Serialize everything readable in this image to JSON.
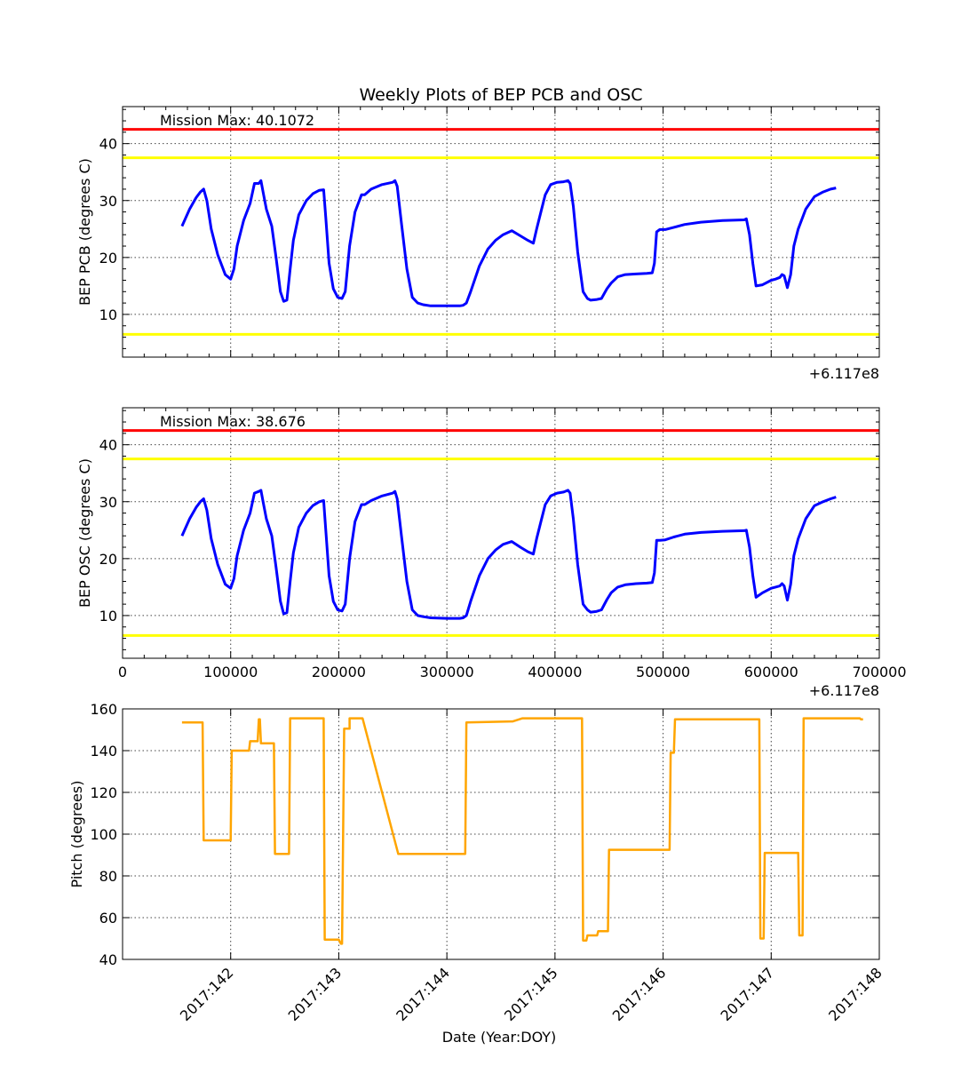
{
  "title": "Weekly Plots of BEP PCB and OSC",
  "chart_data": [
    {
      "type": "line",
      "ylabel": "BEP PCB (degrees C)",
      "offset_label": "+6.117e8",
      "annotation": "Mission Max: 40.1072",
      "xlim": [
        0,
        700000
      ],
      "ylim": [
        2.5,
        46.5
      ],
      "yticks": [
        10,
        20,
        30,
        40
      ],
      "xticks": [
        0,
        100000,
        200000,
        300000,
        400000,
        500000,
        600000,
        700000
      ],
      "grid": true,
      "hlines": [
        {
          "y": 42.5,
          "color": "#ff0000"
        },
        {
          "y": 37.5,
          "color": "#ffff00"
        },
        {
          "y": 6.5,
          "color": "#ffff00"
        }
      ],
      "series": [
        {
          "color": "#0000ff",
          "x": [
            55000,
            62000,
            68000,
            72000,
            75000,
            78000,
            82000,
            88000,
            95000,
            100000,
            103000,
            106000,
            112000,
            118000,
            122000,
            126000,
            128000,
            130000,
            133000,
            138000,
            142000,
            146000,
            149000,
            152000,
            155000,
            158000,
            163000,
            170000,
            176000,
            182000,
            186000,
            188000,
            191000,
            195000,
            199000,
            203000,
            206000,
            210000,
            215000,
            221000,
            224000,
            230000,
            240000,
            250000,
            252000,
            254000,
            258000,
            263000,
            268000,
            273000,
            278000,
            285000,
            300000,
            312000,
            315000,
            318000,
            322000,
            330000,
            338000,
            345000,
            352000,
            360000,
            368000,
            375000,
            380000,
            383000,
            387000,
            391000,
            396000,
            402000,
            408000,
            412000,
            414000,
            417000,
            421000,
            426000,
            430000,
            433000,
            438000,
            443000,
            448000,
            452000,
            458000,
            465000,
            475000,
            485000,
            490000,
            492000,
            494000,
            497000,
            502000,
            510000,
            520000,
            535000,
            555000,
            575000,
            577000,
            580000,
            583000,
            586000,
            592000,
            600000,
            604000,
            608000,
            610000,
            612000,
            615000,
            618000,
            621000,
            625000,
            632000,
            640000,
            648000,
            655000,
            660000
          ],
          "y": [
            25.5,
            28.5,
            30.5,
            31.5,
            32,
            30,
            25,
            20.5,
            17,
            16.2,
            18,
            22,
            26.5,
            29.5,
            33,
            33,
            33.5,
            31.5,
            28.5,
            25.5,
            20,
            14,
            12.3,
            12.5,
            18,
            23,
            27.5,
            30,
            31.2,
            31.8,
            31.9,
            27,
            19,
            14.5,
            13,
            12.8,
            14,
            22,
            28,
            31,
            31,
            32,
            32.8,
            33.2,
            33.5,
            32.5,
            26,
            18,
            13,
            12,
            11.7,
            11.5,
            11.5,
            11.5,
            11.6,
            12,
            14,
            18.5,
            21.5,
            23,
            24,
            24.7,
            23.8,
            23,
            22.5,
            25,
            28,
            31,
            32.8,
            33.2,
            33.3,
            33.5,
            33,
            29,
            21,
            14,
            12.8,
            12.5,
            12.6,
            12.8,
            14.5,
            15.5,
            16.6,
            17,
            17.1,
            17.2,
            17.3,
            19,
            24.5,
            24.9,
            24.9,
            25.3,
            25.8,
            26.2,
            26.5,
            26.6,
            26.8,
            24,
            19,
            15,
            15.2,
            16,
            16.2,
            16.5,
            17,
            16.8,
            14.7,
            17,
            22,
            25,
            28.5,
            30.7,
            31.5,
            32,
            32.2
          ]
        }
      ]
    },
    {
      "type": "line",
      "ylabel": "BEP OSC (degrees C)",
      "offset_label": "+6.117e8",
      "annotation": "Mission Max: 38.676",
      "xlim": [
        0,
        700000
      ],
      "ylim": [
        2.5,
        46.5
      ],
      "yticks": [
        10,
        20,
        30,
        40
      ],
      "xticks": [
        0,
        100000,
        200000,
        300000,
        400000,
        500000,
        600000,
        700000
      ],
      "xticklabels": [
        "0",
        "100000",
        "200000",
        "300000",
        "400000",
        "500000",
        "600000",
        "700000"
      ],
      "grid": true,
      "hlines": [
        {
          "y": 42.5,
          "color": "#ff0000"
        },
        {
          "y": 37.5,
          "color": "#ffff00"
        },
        {
          "y": 6.5,
          "color": "#ffff00"
        }
      ],
      "series": [
        {
          "color": "#0000ff",
          "x": [
            55000,
            62000,
            68000,
            72000,
            75000,
            78000,
            82000,
            88000,
            95000,
            100000,
            103000,
            106000,
            112000,
            118000,
            122000,
            126000,
            128000,
            130000,
            133000,
            138000,
            142000,
            146000,
            149000,
            152000,
            155000,
            158000,
            163000,
            170000,
            176000,
            182000,
            186000,
            188000,
            191000,
            195000,
            199000,
            203000,
            206000,
            210000,
            215000,
            221000,
            224000,
            230000,
            240000,
            250000,
            252000,
            254000,
            258000,
            263000,
            268000,
            273000,
            278000,
            285000,
            300000,
            312000,
            315000,
            318000,
            322000,
            330000,
            338000,
            345000,
            352000,
            360000,
            368000,
            375000,
            380000,
            383000,
            387000,
            391000,
            396000,
            402000,
            408000,
            412000,
            414000,
            417000,
            421000,
            426000,
            430000,
            433000,
            438000,
            443000,
            448000,
            452000,
            458000,
            465000,
            475000,
            485000,
            490000,
            492000,
            494000,
            497000,
            502000,
            510000,
            520000,
            535000,
            555000,
            575000,
            577000,
            580000,
            583000,
            586000,
            592000,
            600000,
            604000,
            608000,
            610000,
            612000,
            615000,
            618000,
            621000,
            625000,
            632000,
            640000,
            648000,
            655000,
            660000
          ],
          "y": [
            24,
            27,
            29,
            30,
            30.5,
            28.5,
            23.5,
            19,
            15.5,
            14.8,
            16.5,
            20.5,
            25,
            28,
            31.5,
            31.8,
            32,
            30,
            27,
            24,
            18.5,
            12.5,
            10.3,
            10.5,
            16,
            21,
            25.5,
            28,
            29.3,
            30,
            30.2,
            25,
            17,
            12.5,
            11,
            10.8,
            12,
            20,
            26.5,
            29.5,
            29.5,
            30.2,
            31,
            31.5,
            31.8,
            30.5,
            24,
            16,
            11,
            10,
            9.8,
            9.6,
            9.5,
            9.5,
            9.6,
            10,
            12.5,
            17,
            20,
            21.5,
            22.5,
            23,
            22,
            21.2,
            20.8,
            23.5,
            26.5,
            29.5,
            31,
            31.5,
            31.7,
            32,
            31.5,
            27,
            19,
            12,
            11,
            10.6,
            10.7,
            11,
            12.8,
            14,
            15,
            15.4,
            15.6,
            15.7,
            15.8,
            17.5,
            23.2,
            23.2,
            23.3,
            23.8,
            24.3,
            24.6,
            24.8,
            24.9,
            25,
            22,
            17,
            13.2,
            14,
            14.8,
            15,
            15.2,
            15.6,
            15.2,
            12.7,
            15.5,
            20.5,
            23.5,
            27,
            29.3,
            30,
            30.5,
            30.8
          ]
        }
      ]
    },
    {
      "type": "line",
      "ylabel": "Pitch (degrees)",
      "xlabel": "Date (Year:DOY)",
      "ylim": [
        40,
        160
      ],
      "yticks": [
        40,
        60,
        80,
        100,
        120,
        140,
        160
      ],
      "xlim": [
        141.0,
        148.0
      ],
      "xticks": [
        "2017:142",
        "2017:143",
        "2017:144",
        "2017:145",
        "2017:146",
        "2017:147",
        "2017:148"
      ],
      "grid": true,
      "series": [
        {
          "color": "#ffa500",
          "x": [
            141.55,
            141.74,
            141.75,
            142.0,
            142.01,
            142.17,
            142.18,
            142.25,
            142.26,
            142.27,
            142.28,
            142.29,
            142.3,
            142.31,
            142.4,
            142.41,
            142.42,
            142.54,
            142.55,
            142.86,
            142.87,
            143.0,
            143.02,
            143.03,
            143.05,
            143.06,
            143.1,
            143.1,
            143.21,
            143.22,
            143.55,
            143.56,
            144.17,
            144.18,
            144.6,
            144.61,
            144.7,
            144.71,
            145.25,
            145.26,
            145.29,
            145.3,
            145.39,
            145.4,
            145.49,
            145.5,
            146.06,
            146.07,
            146.1,
            146.11,
            146.89,
            146.9,
            146.93,
            146.94,
            147.25,
            147.26,
            147.29,
            147.3,
            147.38,
            147.39,
            147.82,
            147.83,
            147.85
          ],
          "y": [
            153.5,
            153.5,
            97,
            97,
            140,
            140,
            144.5,
            144.5,
            155,
            155,
            143.5,
            143.5,
            143.5,
            143.5,
            143.5,
            90.5,
            90.5,
            90.5,
            155.5,
            155.5,
            49.5,
            49.5,
            47.5,
            47.5,
            150.5,
            150.5,
            150.5,
            155.5,
            155.5,
            155.5,
            90.5,
            90.5,
            90.5,
            153.5,
            154,
            154,
            155.5,
            155.5,
            155.5,
            49,
            49,
            51.5,
            51.5,
            53.5,
            53.5,
            92.5,
            92.5,
            139,
            139,
            155,
            155,
            50,
            50,
            91,
            91,
            51.5,
            51.5,
            155.5,
            155.5,
            155.5,
            155.5,
            155,
            155
          ]
        }
      ]
    }
  ]
}
